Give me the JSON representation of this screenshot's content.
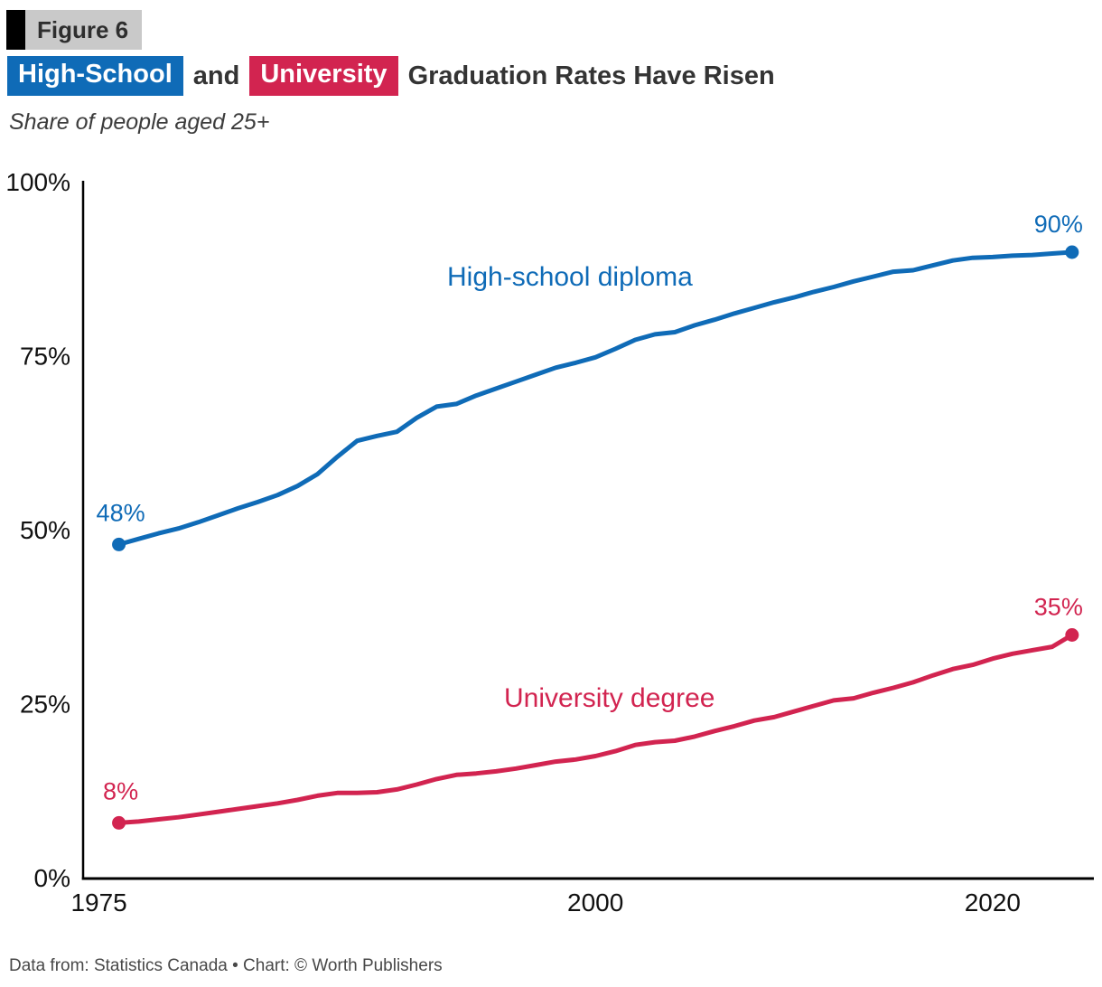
{
  "figure_label": "Figure 6",
  "title": {
    "chip_highschool": "High-School",
    "connector": "and",
    "chip_university": "University",
    "rest": "Graduation Rates Have Risen"
  },
  "subtitle": "Share of people aged 25+",
  "footer": "Data from: Statistics Canada • Chart: © Worth Publishers",
  "colors": {
    "highschool_blue": "#0f6bb7",
    "university_red": "#d22450",
    "axis_black": "#000000",
    "tick_text": "#111111"
  },
  "chart_data": {
    "type": "line",
    "title": "High-School and University Graduation Rates Have Risen",
    "subtitle": "Share of people aged 25+",
    "xlabel": "",
    "ylabel": "Share of people aged 25+ (%)",
    "xlim": [
      1974.2,
      2025.1
    ],
    "ylim": [
      0,
      100
    ],
    "grid": false,
    "legend_position": "inline-labels",
    "x_ticks": [
      {
        "value": 1975,
        "label": "1975"
      },
      {
        "value": 2000,
        "label": "2000"
      },
      {
        "value": 2020,
        "label": "2020"
      }
    ],
    "y_ticks": [
      {
        "value": 100,
        "label": "100%"
      },
      {
        "value": 75,
        "label": "75%"
      },
      {
        "value": 50,
        "label": "50%"
      },
      {
        "value": 25,
        "label": "25%"
      },
      {
        "value": 0,
        "label": "0%"
      }
    ],
    "series": [
      {
        "name": "High-school diploma",
        "color": "#0f6bb7",
        "start_label": "48%",
        "end_label": "90%",
        "points": [
          [
            1976,
            48
          ],
          [
            1977,
            48.8
          ],
          [
            1978,
            49.6
          ],
          [
            1979,
            50.3
          ],
          [
            1980,
            51.2
          ],
          [
            1981,
            52.2
          ],
          [
            1982,
            53.2
          ],
          [
            1983,
            54.1
          ],
          [
            1984,
            55.1
          ],
          [
            1985,
            56.4
          ],
          [
            1986,
            58.1
          ],
          [
            1987,
            60.6
          ],
          [
            1988,
            62.9
          ],
          [
            1989,
            63.6
          ],
          [
            1990,
            64.2
          ],
          [
            1991,
            66.2
          ],
          [
            1992,
            67.8
          ],
          [
            1993,
            68.2
          ],
          [
            1994,
            69.4
          ],
          [
            1995,
            70.4
          ],
          [
            1996,
            71.4
          ],
          [
            1997,
            72.4
          ],
          [
            1998,
            73.4
          ],
          [
            1999,
            74.1
          ],
          [
            2000,
            74.9
          ],
          [
            2001,
            76.1
          ],
          [
            2002,
            77.4
          ],
          [
            2003,
            78.2
          ],
          [
            2004,
            78.5
          ],
          [
            2005,
            79.5
          ],
          [
            2006,
            80.3
          ],
          [
            2007,
            81.2
          ],
          [
            2008,
            82
          ],
          [
            2009,
            82.8
          ],
          [
            2010,
            83.5
          ],
          [
            2011,
            84.3
          ],
          [
            2012,
            85
          ],
          [
            2013,
            85.8
          ],
          [
            2014,
            86.5
          ],
          [
            2015,
            87.2
          ],
          [
            2016,
            87.4
          ],
          [
            2017,
            88.1
          ],
          [
            2018,
            88.8
          ],
          [
            2019,
            89.2
          ],
          [
            2020,
            89.3
          ],
          [
            2021,
            89.5
          ],
          [
            2022,
            89.6
          ],
          [
            2023,
            89.8
          ],
          [
            2024,
            90
          ]
        ]
      },
      {
        "name": "University degree",
        "color": "#d22450",
        "start_label": "8%",
        "end_label": "35%",
        "points": [
          [
            1976,
            8
          ],
          [
            1977,
            8.2
          ],
          [
            1978,
            8.5
          ],
          [
            1979,
            8.8
          ],
          [
            1980,
            9.2
          ],
          [
            1981,
            9.6
          ],
          [
            1982,
            10
          ],
          [
            1983,
            10.4
          ],
          [
            1984,
            10.8
          ],
          [
            1985,
            11.3
          ],
          [
            1986,
            11.9
          ],
          [
            1987,
            12.3
          ],
          [
            1988,
            12.3
          ],
          [
            1989,
            12.4
          ],
          [
            1990,
            12.8
          ],
          [
            1991,
            13.5
          ],
          [
            1992,
            14.3
          ],
          [
            1993,
            14.9
          ],
          [
            1994,
            15.1
          ],
          [
            1995,
            15.4
          ],
          [
            1996,
            15.8
          ],
          [
            1997,
            16.3
          ],
          [
            1998,
            16.8
          ],
          [
            1999,
            17.1
          ],
          [
            2000,
            17.6
          ],
          [
            2001,
            18.3
          ],
          [
            2002,
            19.2
          ],
          [
            2003,
            19.6
          ],
          [
            2004,
            19.8
          ],
          [
            2005,
            20.4
          ],
          [
            2006,
            21.2
          ],
          [
            2007,
            21.9
          ],
          [
            2008,
            22.7
          ],
          [
            2009,
            23.2
          ],
          [
            2010,
            24
          ],
          [
            2011,
            24.8
          ],
          [
            2012,
            25.6
          ],
          [
            2013,
            25.9
          ],
          [
            2014,
            26.7
          ],
          [
            2015,
            27.4
          ],
          [
            2016,
            28.2
          ],
          [
            2017,
            29.2
          ],
          [
            2018,
            30.1
          ],
          [
            2019,
            30.7
          ],
          [
            2020,
            31.6
          ],
          [
            2021,
            32.3
          ],
          [
            2022,
            32.8
          ],
          [
            2023,
            33.3
          ],
          [
            2024,
            35
          ]
        ]
      }
    ]
  }
}
